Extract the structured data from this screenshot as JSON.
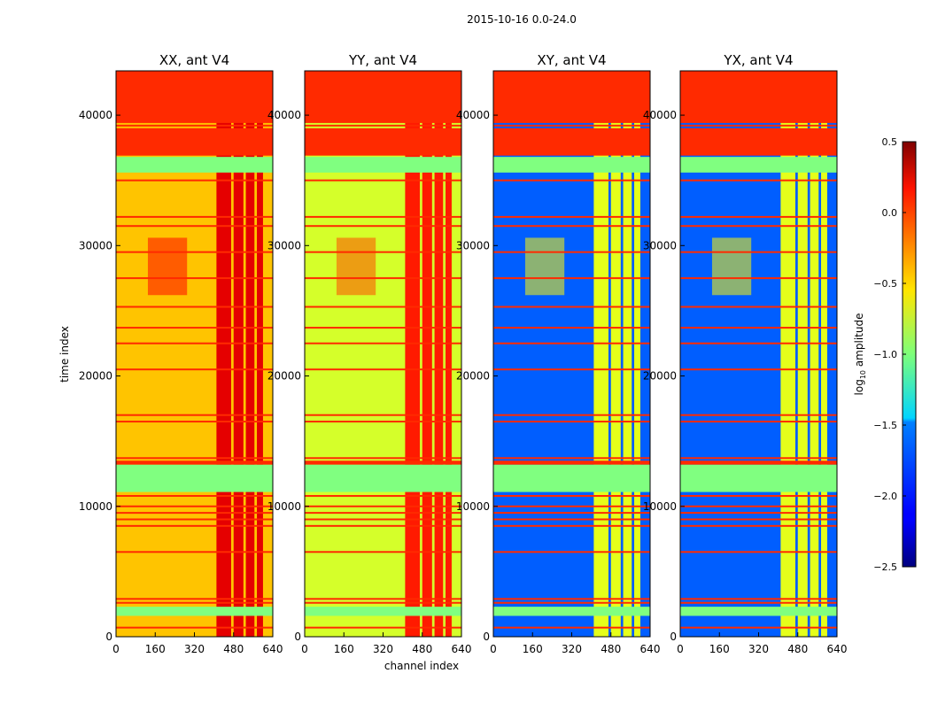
{
  "chart_data": {
    "type": "heatmap",
    "title": "2015-10-16 0.0-24.0",
    "xlabel": "channel index",
    "ylabel": "time index",
    "xlim": [
      0,
      640
    ],
    "ylim": [
      0,
      43400
    ],
    "xticks": [
      0,
      160,
      320,
      480,
      640
    ],
    "yticks": [
      0,
      10000,
      20000,
      30000,
      40000
    ],
    "colorbar": {
      "label_main": "log",
      "label_sub": "10",
      "label_rest": " amplitude",
      "range": [
        -2.5,
        0.5
      ],
      "ticks": [
        "0.5",
        "0.0",
        "−0.5",
        "−1.0",
        "−1.5",
        "−2.0",
        "−2.5"
      ],
      "tick_values": [
        0.5,
        0.0,
        -0.5,
        -1.0,
        -1.5,
        -2.0,
        -2.5
      ],
      "colormap": "jet"
    },
    "panels": [
      {
        "title": "XX, ant V4",
        "base": -0.45,
        "rfi": 0.2,
        "blob": 0.1
      },
      {
        "title": "YY, ant V4",
        "base": -0.75,
        "rfi": 0.05,
        "blob": -0.1
      },
      {
        "title": "XY, ant V4",
        "base": -1.85,
        "rfi": -0.7,
        "blob": -0.6
      },
      {
        "title": "YX, ant V4",
        "base": -1.85,
        "rfi": -0.7,
        "blob": -0.6
      }
    ],
    "rfi_channels": [
      [
        410,
        470
      ],
      [
        480,
        520
      ],
      [
        530,
        565
      ],
      [
        575,
        600
      ]
    ],
    "blob_region": {
      "c0": 130,
      "c1": 290,
      "t0": 26200,
      "t1": 30600
    },
    "flag_bands": [
      {
        "t0": 36900,
        "t1": 39000,
        "v": 0.0
      },
      {
        "t0": 39400,
        "t1": 43400,
        "v": 0.0
      },
      {
        "t0": 35600,
        "t1": 36800,
        "v": -1.0
      },
      {
        "t0": 11100,
        "t1": 13200,
        "v": -1.0
      },
      {
        "t0": 13200,
        "t1": 13500,
        "v": 0.0
      },
      {
        "t0": 1600,
        "t1": 2300,
        "v": -1.0
      }
    ],
    "flag_lines": [
      700,
      2600,
      2900,
      6500,
      8500,
      9000,
      9500,
      10000,
      10800,
      13700,
      16500,
      17000,
      20500,
      22500,
      23700,
      25300,
      27500,
      29500,
      31500,
      32200,
      35000,
      39200,
      40500,
      41500,
      42500,
      43000
    ]
  }
}
